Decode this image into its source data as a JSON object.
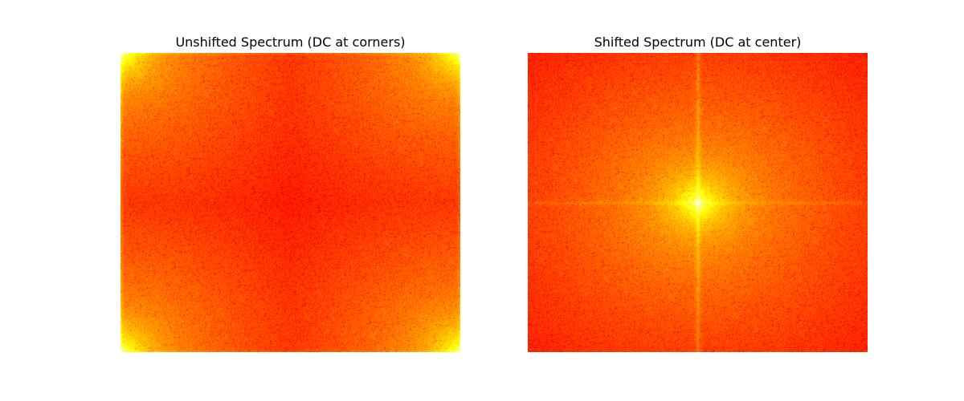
{
  "chart_data": [
    {
      "type": "heatmap",
      "title": "Unshifted Spectrum (DC at corners)",
      "xlabel": "",
      "ylabel": "",
      "axes_visible": false,
      "colormap": "hot",
      "dc_location": "corners",
      "colors": {
        "low": "#cc0000",
        "mid": "#ff2600",
        "high": "#ffff00"
      }
    },
    {
      "type": "heatmap",
      "title": "Shifted Spectrum (DC at center)",
      "xlabel": "",
      "ylabel": "",
      "axes_visible": false,
      "colormap": "hot",
      "dc_location": "center",
      "colors": {
        "low": "#cc0000",
        "mid": "#ff2600",
        "high": "#ffff00"
      }
    }
  ]
}
